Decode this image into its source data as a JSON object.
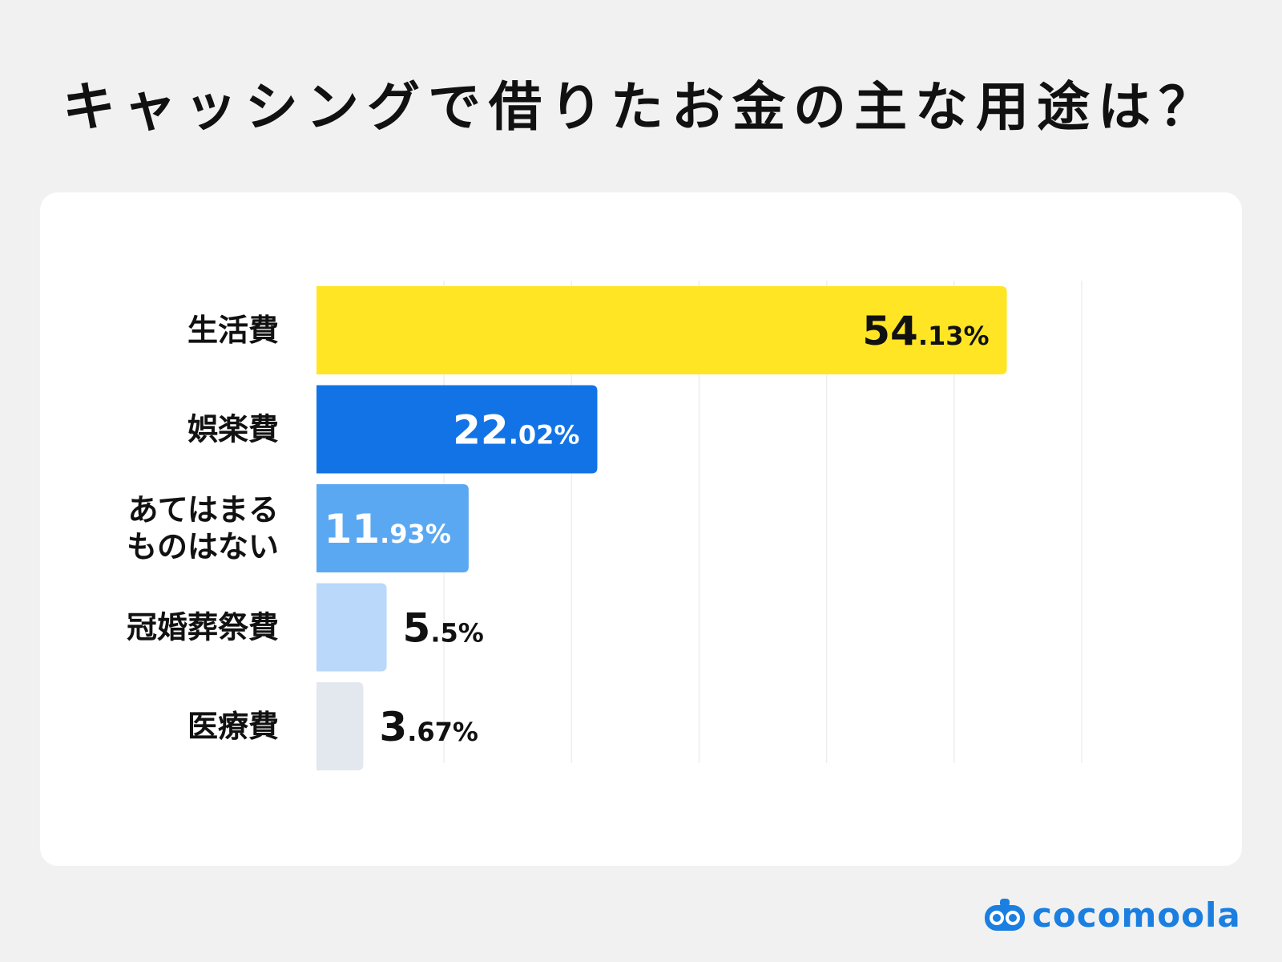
{
  "title": "キャッシングで借りたお金の主な用途は？",
  "brand": {
    "name": "cocomoola",
    "color": "#1a7fe0"
  },
  "chart_data": {
    "type": "bar",
    "orientation": "horizontal",
    "title": "キャッシングで借りたお金の主な用途は？",
    "categories": [
      [
        "生活費"
      ],
      [
        "娯楽費"
      ],
      [
        "あてはまる",
        "ものはない"
      ],
      [
        "冠婚葬祭費"
      ],
      [
        "医療費"
      ]
    ],
    "values": [
      54.13,
      22.02,
      11.93,
      5.5,
      3.67
    ],
    "data_labels": [
      {
        "int": "54",
        "dec": ".13%"
      },
      {
        "int": "22",
        "dec": ".02%"
      },
      {
        "int": "11",
        "dec": ".93%"
      },
      {
        "int": "5",
        "dec": ".5%"
      },
      {
        "int": "3",
        "dec": ".67%"
      }
    ],
    "colors": [
      "#ffe524",
      "#1273e6",
      "#5ba8f2",
      "#b9d8fa",
      "#e3e8ef"
    ],
    "label_colors": [
      "#111111",
      "#ffffff",
      "#ffffff",
      "#111111",
      "#111111"
    ],
    "label_inside": [
      true,
      true,
      true,
      false,
      false
    ],
    "xlim": [
      0,
      60
    ],
    "grid": true,
    "legend": "none"
  }
}
